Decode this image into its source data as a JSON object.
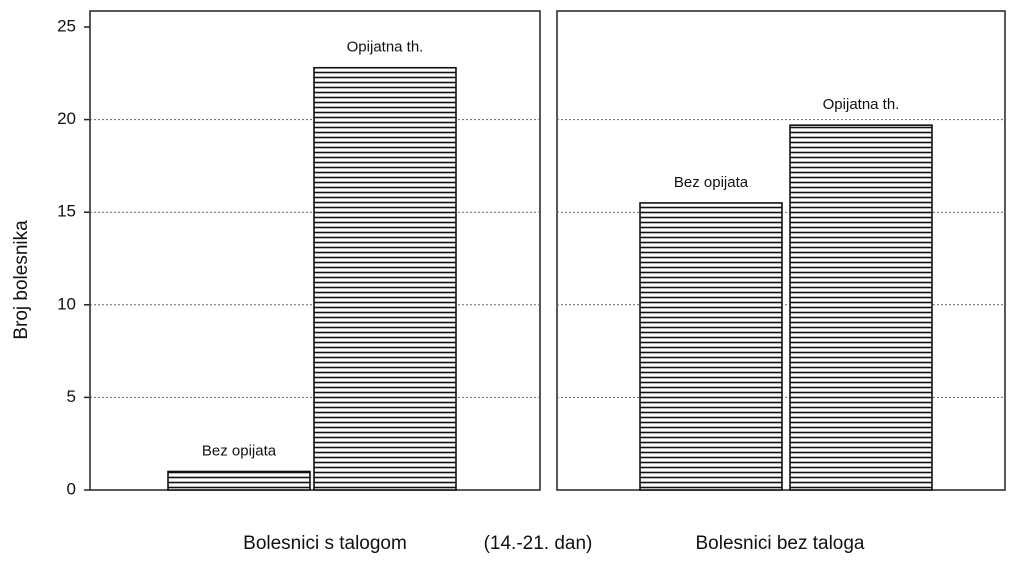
{
  "chart_data": [
    {
      "type": "bar",
      "title": "Bolesnici s talogom",
      "ylabel": "Broj bolesnika",
      "categories": [
        "Bez opijata",
        "Opijatna th."
      ],
      "values": [
        1,
        22.8
      ],
      "ylim": [
        0,
        25
      ],
      "yticks": [
        0,
        5,
        10,
        15,
        20,
        25
      ],
      "grid": true,
      "color": "#111"
    },
    {
      "type": "bar",
      "title": "Bolesnici bez taloga",
      "categories": [
        "Bez opijata",
        "Opijatna th."
      ],
      "values": [
        15.5,
        19.7
      ],
      "ylim": [
        0,
        25
      ],
      "yticks": [
        0,
        5,
        10,
        15,
        20,
        25
      ],
      "grid": true,
      "color": "#111"
    }
  ],
  "x_note": "(14.-21. dan)"
}
